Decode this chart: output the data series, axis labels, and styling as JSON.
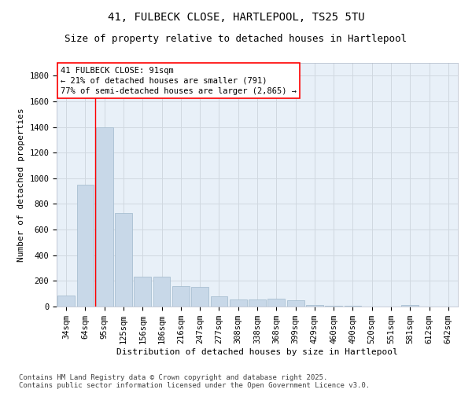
{
  "title_line1": "41, FULBECK CLOSE, HARTLEPOOL, TS25 5TU",
  "title_line2": "Size of property relative to detached houses in Hartlepool",
  "xlabel": "Distribution of detached houses by size in Hartlepool",
  "ylabel": "Number of detached properties",
  "categories": [
    "34sqm",
    "64sqm",
    "95sqm",
    "125sqm",
    "156sqm",
    "186sqm",
    "216sqm",
    "247sqm",
    "277sqm",
    "308sqm",
    "338sqm",
    "368sqm",
    "399sqm",
    "429sqm",
    "460sqm",
    "490sqm",
    "520sqm",
    "551sqm",
    "581sqm",
    "612sqm",
    "642sqm"
  ],
  "values": [
    85,
    950,
    1400,
    730,
    230,
    230,
    160,
    155,
    80,
    55,
    55,
    60,
    50,
    15,
    5,
    5,
    0,
    0,
    10,
    0,
    0
  ],
  "bar_color": "#c8d8e8",
  "bar_edge_color": "#a0b8cc",
  "grid_color": "#d0d8e0",
  "bg_color": "#e8f0f8",
  "vline_color": "red",
  "vline_x": 1.5,
  "annotation_text": "41 FULBECK CLOSE: 91sqm\n← 21% of detached houses are smaller (791)\n77% of semi-detached houses are larger (2,865) →",
  "annotation_box_color": "white",
  "annotation_box_edge": "red",
  "footer_line1": "Contains HM Land Registry data © Crown copyright and database right 2025.",
  "footer_line2": "Contains public sector information licensed under the Open Government Licence v3.0.",
  "ylim": [
    0,
    1900
  ],
  "yticks": [
    0,
    200,
    400,
    600,
    800,
    1000,
    1200,
    1400,
    1600,
    1800
  ],
  "title_fontsize": 10,
  "subtitle_fontsize": 9,
  "axis_label_fontsize": 8,
  "tick_fontsize": 7.5,
  "annotation_fontsize": 7.5,
  "footer_fontsize": 6.5
}
